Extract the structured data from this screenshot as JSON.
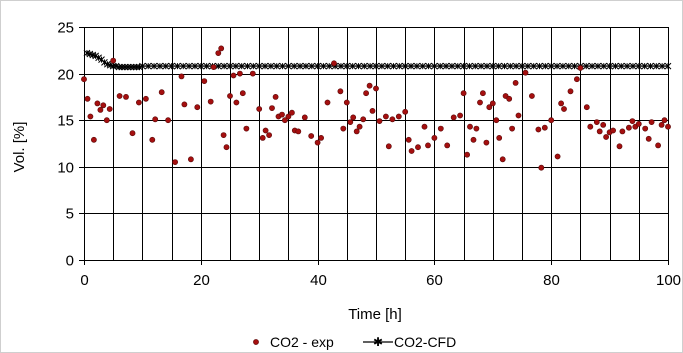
{
  "chart_data": {
    "type": "scatter",
    "title": "",
    "xlabel": "Time [h]",
    "ylabel": "Vol. [%]",
    "xlim": [
      0,
      100
    ],
    "ylim": [
      0,
      25
    ],
    "x_ticks": [
      0,
      20,
      40,
      60,
      80,
      100
    ],
    "y_ticks": [
      0,
      5,
      10,
      15,
      20,
      25
    ],
    "x_tick_labels": [
      "0",
      "20",
      "40",
      "60",
      "80",
      "100"
    ],
    "y_tick_labels": [
      "0",
      "5",
      "10",
      "15",
      "20",
      "25"
    ],
    "x_gridlines_every": 5,
    "grid": true,
    "legend_position": "bottom",
    "series": [
      {
        "name": "CO2 - exp",
        "marker": "circle",
        "color": "#a50f0f",
        "points": [
          [
            0.0,
            19.4
          ],
          [
            0.6,
            17.3
          ],
          [
            1.1,
            15.4
          ],
          [
            1.7,
            12.9
          ],
          [
            2.3,
            16.8
          ],
          [
            2.8,
            16.1
          ],
          [
            3.3,
            16.6
          ],
          [
            3.9,
            15.0
          ],
          [
            4.4,
            16.2
          ],
          [
            5.0,
            21.4
          ],
          [
            6.1,
            17.6
          ],
          [
            7.2,
            17.5
          ],
          [
            8.3,
            13.6
          ],
          [
            9.4,
            16.9
          ],
          [
            10.6,
            17.3
          ],
          [
            11.7,
            12.9
          ],
          [
            12.2,
            15.1
          ],
          [
            13.3,
            18.0
          ],
          [
            14.4,
            15.0
          ],
          [
            15.6,
            10.5
          ],
          [
            16.7,
            19.7
          ],
          [
            17.2,
            16.7
          ],
          [
            18.3,
            10.8
          ],
          [
            19.4,
            16.4
          ],
          [
            20.6,
            19.2
          ],
          [
            21.7,
            17.0
          ],
          [
            22.2,
            20.7
          ],
          [
            23.0,
            22.2
          ],
          [
            23.5,
            22.7
          ],
          [
            23.9,
            13.4
          ],
          [
            24.4,
            12.1
          ],
          [
            25.0,
            17.6
          ],
          [
            25.6,
            19.8
          ],
          [
            26.1,
            16.9
          ],
          [
            26.7,
            20.0
          ],
          [
            27.2,
            17.9
          ],
          [
            27.8,
            14.1
          ],
          [
            28.9,
            20.0
          ],
          [
            30.0,
            16.2
          ],
          [
            30.6,
            13.1
          ],
          [
            31.1,
            13.9
          ],
          [
            31.7,
            13.4
          ],
          [
            32.2,
            16.3
          ],
          [
            32.8,
            17.5
          ],
          [
            33.3,
            15.4
          ],
          [
            33.9,
            15.6
          ],
          [
            34.4,
            15.0
          ],
          [
            35.0,
            15.4
          ],
          [
            35.6,
            15.8
          ],
          [
            36.1,
            13.9
          ],
          [
            36.7,
            13.8
          ],
          [
            37.8,
            15.3
          ],
          [
            38.9,
            13.3
          ],
          [
            40.0,
            12.6
          ],
          [
            40.6,
            13.1
          ],
          [
            41.7,
            16.9
          ],
          [
            42.8,
            21.1
          ],
          [
            43.9,
            18.1
          ],
          [
            44.4,
            14.1
          ],
          [
            45.0,
            16.9
          ],
          [
            45.6,
            14.8
          ],
          [
            46.1,
            15.3
          ],
          [
            46.7,
            13.8
          ],
          [
            47.2,
            14.3
          ],
          [
            47.8,
            15.1
          ],
          [
            48.3,
            17.9
          ],
          [
            48.9,
            18.7
          ],
          [
            49.4,
            16.0
          ],
          [
            50.0,
            18.4
          ],
          [
            50.6,
            14.9
          ],
          [
            51.7,
            15.4
          ],
          [
            52.2,
            12.2
          ],
          [
            52.8,
            15.1
          ],
          [
            53.9,
            15.4
          ],
          [
            55.0,
            15.9
          ],
          [
            55.6,
            12.9
          ],
          [
            56.1,
            11.7
          ],
          [
            57.2,
            12.1
          ],
          [
            58.3,
            14.3
          ],
          [
            58.9,
            12.3
          ],
          [
            60.0,
            13.1
          ],
          [
            61.1,
            14.1
          ],
          [
            62.2,
            12.3
          ],
          [
            63.3,
            15.3
          ],
          [
            64.4,
            15.5
          ],
          [
            65.0,
            17.9
          ],
          [
            65.6,
            11.3
          ],
          [
            66.1,
            14.3
          ],
          [
            66.7,
            12.9
          ],
          [
            67.2,
            14.1
          ],
          [
            67.8,
            16.9
          ],
          [
            68.3,
            17.9
          ],
          [
            68.9,
            12.6
          ],
          [
            69.4,
            16.4
          ],
          [
            70.0,
            16.8
          ],
          [
            70.6,
            15.0
          ],
          [
            71.1,
            13.1
          ],
          [
            71.7,
            10.8
          ],
          [
            72.2,
            17.6
          ],
          [
            72.8,
            17.3
          ],
          [
            73.3,
            14.1
          ],
          [
            73.9,
            19.0
          ],
          [
            74.4,
            15.5
          ],
          [
            75.6,
            20.1
          ],
          [
            76.7,
            17.6
          ],
          [
            77.8,
            14.0
          ],
          [
            78.3,
            9.9
          ],
          [
            78.9,
            14.2
          ],
          [
            80.0,
            15.0
          ],
          [
            81.1,
            11.1
          ],
          [
            81.7,
            16.8
          ],
          [
            82.2,
            16.2
          ],
          [
            83.3,
            18.1
          ],
          [
            84.4,
            19.4
          ],
          [
            85.0,
            20.6
          ],
          [
            86.1,
            16.4
          ],
          [
            86.7,
            14.3
          ],
          [
            87.8,
            14.8
          ],
          [
            88.3,
            13.8
          ],
          [
            88.9,
            14.5
          ],
          [
            89.4,
            13.2
          ],
          [
            90.0,
            13.7
          ],
          [
            90.6,
            13.9
          ],
          [
            91.7,
            12.2
          ],
          [
            92.2,
            13.8
          ],
          [
            93.3,
            14.2
          ],
          [
            93.9,
            14.9
          ],
          [
            94.4,
            14.3
          ],
          [
            95.0,
            14.6
          ],
          [
            96.1,
            14.1
          ],
          [
            96.7,
            13.0
          ],
          [
            97.2,
            14.8
          ],
          [
            98.3,
            12.3
          ],
          [
            98.9,
            14.5
          ],
          [
            99.4,
            15.0
          ],
          [
            100.0,
            14.3
          ]
        ]
      },
      {
        "name": "CO2-CFD",
        "marker": "star",
        "color": "#000000",
        "points": [
          [
            0.5,
            22.2
          ],
          [
            1.0,
            22.1
          ],
          [
            1.5,
            22.0
          ],
          [
            2.0,
            21.9
          ],
          [
            2.5,
            21.7
          ],
          [
            3.0,
            21.5
          ],
          [
            3.5,
            21.2
          ],
          [
            4.0,
            21.0
          ],
          [
            4.5,
            20.9
          ],
          [
            5.0,
            20.8
          ],
          [
            5.5,
            20.8
          ],
          [
            6.0,
            20.7
          ],
          [
            6.5,
            20.7
          ],
          [
            7.0,
            20.7
          ],
          [
            7.5,
            20.7
          ],
          [
            8.0,
            20.7
          ],
          [
            8.5,
            20.7
          ],
          [
            9.0,
            20.7
          ],
          [
            9.5,
            20.7
          ],
          [
            10.0,
            20.8
          ],
          [
            11.0,
            20.8
          ],
          [
            12.0,
            20.8
          ],
          [
            13.0,
            20.8
          ],
          [
            14.0,
            20.8
          ],
          [
            15.0,
            20.8
          ],
          [
            16.0,
            20.8
          ],
          [
            17.0,
            20.8
          ],
          [
            18.0,
            20.8
          ],
          [
            19.0,
            20.8
          ],
          [
            20.0,
            20.8
          ],
          [
            21.0,
            20.8
          ],
          [
            22.0,
            20.8
          ],
          [
            23.0,
            20.8
          ],
          [
            24.0,
            20.8
          ],
          [
            25.0,
            20.8
          ],
          [
            26.0,
            20.8
          ],
          [
            27.0,
            20.8
          ],
          [
            28.0,
            20.8
          ],
          [
            29.0,
            20.8
          ],
          [
            30.0,
            20.8
          ],
          [
            31.0,
            20.8
          ],
          [
            32.0,
            20.8
          ],
          [
            33.0,
            20.8
          ],
          [
            34.0,
            20.8
          ],
          [
            35.0,
            20.8
          ],
          [
            36.0,
            20.8
          ],
          [
            37.0,
            20.8
          ],
          [
            38.0,
            20.8
          ],
          [
            39.0,
            20.8
          ],
          [
            40.0,
            20.8
          ],
          [
            41.0,
            20.8
          ],
          [
            42.0,
            20.8
          ],
          [
            43.0,
            20.8
          ],
          [
            44.0,
            20.8
          ],
          [
            45.0,
            20.8
          ],
          [
            46.0,
            20.8
          ],
          [
            47.0,
            20.8
          ],
          [
            48.0,
            20.8
          ],
          [
            49.0,
            20.8
          ],
          [
            50.0,
            20.8
          ],
          [
            51.0,
            20.8
          ],
          [
            52.0,
            20.8
          ],
          [
            53.0,
            20.8
          ],
          [
            54.0,
            20.8
          ],
          [
            55.0,
            20.8
          ],
          [
            56.0,
            20.8
          ],
          [
            57.0,
            20.8
          ],
          [
            58.0,
            20.8
          ],
          [
            59.0,
            20.8
          ],
          [
            60.0,
            20.8
          ],
          [
            61.0,
            20.8
          ],
          [
            62.0,
            20.8
          ],
          [
            63.0,
            20.8
          ],
          [
            64.0,
            20.8
          ],
          [
            65.0,
            20.8
          ],
          [
            66.0,
            20.8
          ],
          [
            67.0,
            20.8
          ],
          [
            68.0,
            20.8
          ],
          [
            69.0,
            20.8
          ],
          [
            70.0,
            20.8
          ],
          [
            71.0,
            20.8
          ],
          [
            72.0,
            20.8
          ],
          [
            73.0,
            20.8
          ],
          [
            74.0,
            20.8
          ],
          [
            75.0,
            20.8
          ],
          [
            76.0,
            20.8
          ],
          [
            77.0,
            20.8
          ],
          [
            78.0,
            20.8
          ],
          [
            79.0,
            20.8
          ],
          [
            80.0,
            20.8
          ],
          [
            81.0,
            20.8
          ],
          [
            82.0,
            20.8
          ],
          [
            83.0,
            20.8
          ],
          [
            84.0,
            20.8
          ],
          [
            85.0,
            20.8
          ],
          [
            86.0,
            20.8
          ],
          [
            87.0,
            20.8
          ],
          [
            88.0,
            20.8
          ],
          [
            89.0,
            20.8
          ],
          [
            90.0,
            20.8
          ],
          [
            91.0,
            20.8
          ],
          [
            92.0,
            20.8
          ],
          [
            93.0,
            20.8
          ],
          [
            94.0,
            20.8
          ],
          [
            95.0,
            20.8
          ],
          [
            96.0,
            20.8
          ],
          [
            97.0,
            20.8
          ],
          [
            98.0,
            20.8
          ],
          [
            99.0,
            20.8
          ],
          [
            100.0,
            20.8
          ]
        ]
      }
    ]
  }
}
